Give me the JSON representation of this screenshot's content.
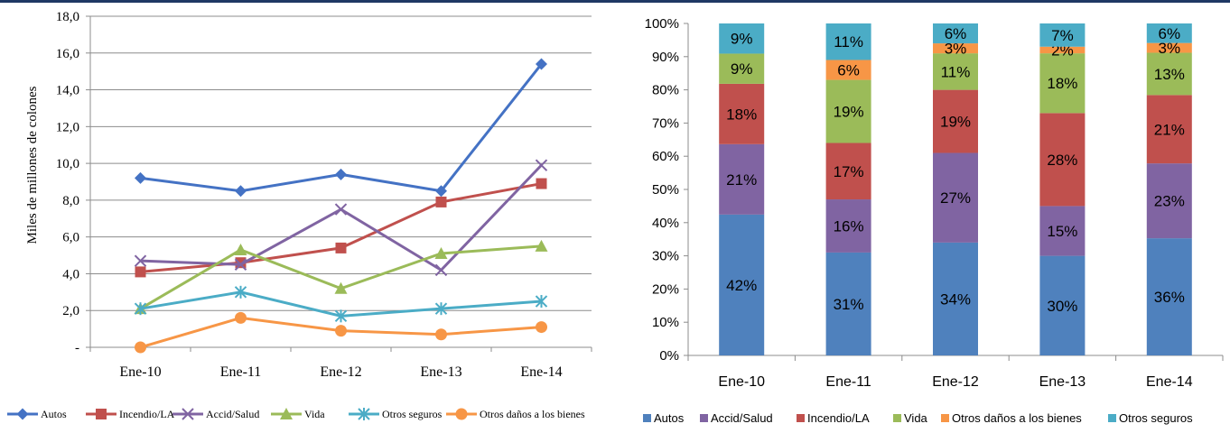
{
  "left_chart": {
    "ylabel": "Miles de millones de colones",
    "x_labels": [
      "Ene-10",
      "Ene-11",
      "Ene-12",
      "Ene-13",
      "Ene-14"
    ],
    "y_tick_labels": [
      "-",
      "2,0",
      "4,0",
      "6,0",
      "8,0",
      "10,0",
      "12,0",
      "14,0",
      "16,0",
      "18,0"
    ],
    "legend": [
      "Autos",
      "Incendio/LA",
      "Accid/Salud",
      "Vida",
      "Otros seguros",
      "Otros daños a los bienes"
    ]
  },
  "right_chart": {
    "x_labels": [
      "Ene-10",
      "Ene-11",
      "Ene-12",
      "Ene-13",
      "Ene-14"
    ],
    "y_tick_labels": [
      "0%",
      "10%",
      "20%",
      "30%",
      "40%",
      "50%",
      "60%",
      "70%",
      "80%",
      "90%",
      "100%"
    ],
    "legend": [
      "Autos",
      "Accid/Salud",
      "Incendio/LA",
      "Vida",
      "Otros daños a los bienes",
      "Otros seguros"
    ]
  },
  "chart_data": [
    {
      "type": "line",
      "title": "",
      "xlabel": "",
      "ylabel": "Miles de millones de colones",
      "categories": [
        "Ene-10",
        "Ene-11",
        "Ene-12",
        "Ene-13",
        "Ene-14"
      ],
      "ylim": [
        0,
        18
      ],
      "grid": true,
      "legend_position": "bottom",
      "series": [
        {
          "name": "Autos",
          "color": "#4472c4",
          "marker": "diamond",
          "values": [
            9.2,
            8.5,
            9.4,
            8.5,
            15.4
          ]
        },
        {
          "name": "Incendio/LA",
          "color": "#c0504d",
          "marker": "square",
          "values": [
            4.1,
            4.6,
            5.4,
            7.9,
            8.9
          ]
        },
        {
          "name": "Accid/Salud",
          "color": "#8064a2",
          "marker": "x",
          "values": [
            4.7,
            4.5,
            7.5,
            4.2,
            9.9
          ]
        },
        {
          "name": "Vida",
          "color": "#9bbb59",
          "marker": "triangle",
          "values": [
            2.1,
            5.3,
            3.2,
            5.1,
            5.5
          ]
        },
        {
          "name": "Otros seguros",
          "color": "#4bacc6",
          "marker": "asterisk",
          "values": [
            2.1,
            3.0,
            1.7,
            2.1,
            2.5
          ]
        },
        {
          "name": "Otros daños a los bienes",
          "color": "#f79646",
          "marker": "circle",
          "values": [
            0.0,
            1.6,
            0.9,
            0.7,
            1.1
          ]
        }
      ]
    },
    {
      "type": "bar",
      "stacked": true,
      "percent": true,
      "title": "",
      "xlabel": "",
      "ylabel": "",
      "categories": [
        "Ene-10",
        "Ene-11",
        "Ene-12",
        "Ene-13",
        "Ene-14"
      ],
      "ylim": [
        0,
        100
      ],
      "grid": false,
      "legend_position": "bottom",
      "series": [
        {
          "name": "Autos",
          "color": "#4f81bd",
          "values": [
            42,
            31,
            34,
            30,
            36
          ],
          "labels": [
            "42%",
            "31%",
            "34%",
            "30%",
            "36%"
          ]
        },
        {
          "name": "Accid/Salud",
          "color": "#8064a2",
          "values": [
            21,
            16,
            27,
            15,
            23
          ],
          "labels": [
            "21%",
            "16%",
            "27%",
            "15%",
            "23%"
          ]
        },
        {
          "name": "Incendio/LA",
          "color": "#c0504d",
          "values": [
            18,
            17,
            19,
            28,
            21
          ],
          "labels": [
            "18%",
            "17%",
            "19%",
            "28%",
            "21%"
          ]
        },
        {
          "name": "Vida",
          "color": "#9bbb59",
          "values": [
            9,
            19,
            11,
            18,
            13
          ],
          "labels": [
            "9%",
            "19%",
            "11%",
            "18%",
            "13%"
          ]
        },
        {
          "name": "Otros daños a los bienes",
          "color": "#f79646",
          "values": [
            0,
            6,
            3,
            2,
            3
          ],
          "labels": [
            "",
            "6%",
            "3%",
            "2%",
            "3%"
          ]
        },
        {
          "name": "Otros seguros",
          "color": "#4bacc6",
          "values": [
            9,
            11,
            6,
            7,
            6
          ],
          "labels": [
            "9%",
            "11%",
            "6%",
            "7%",
            "6%"
          ]
        }
      ]
    }
  ]
}
